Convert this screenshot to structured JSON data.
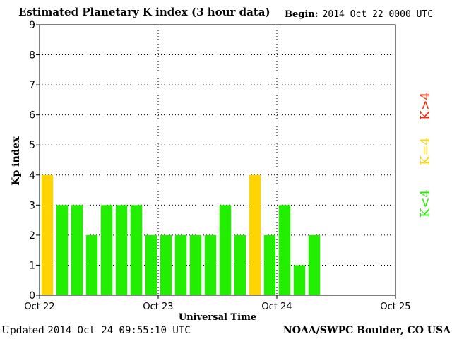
{
  "header": {
    "title": "Estimated Planetary K index (3 hour data)",
    "begin_label": "Begin:",
    "begin_value": "2014 Oct 22 0000 UTC"
  },
  "footer": {
    "updated_label": "Updated",
    "updated_value": "2014 Oct 24 09:55:10 UTC",
    "source": "NOAA/SWPC Boulder, CO USA"
  },
  "colors": {
    "below": "#22ee00",
    "equal": "#ffd400",
    "above": "#ff2200"
  },
  "chart_data": {
    "type": "bar",
    "xlabel": "Universal Time",
    "ylabel": "Kp index",
    "ylim": [
      0,
      9
    ],
    "yticks": [
      "0",
      "1",
      "2",
      "3",
      "4",
      "5",
      "6",
      "7",
      "8",
      "9"
    ],
    "xticks": [
      "Oct 22",
      "Oct 23",
      "Oct 24",
      "Oct 25"
    ],
    "grid": true,
    "legend": [
      "K<4",
      "K=4",
      "K>4"
    ],
    "legend_placement": "right",
    "series": [
      {
        "values": [
          4,
          3,
          3,
          2,
          3,
          3,
          3,
          2,
          2,
          2,
          2,
          2,
          3,
          2,
          4,
          2,
          3,
          1,
          2
        ]
      }
    ]
  }
}
